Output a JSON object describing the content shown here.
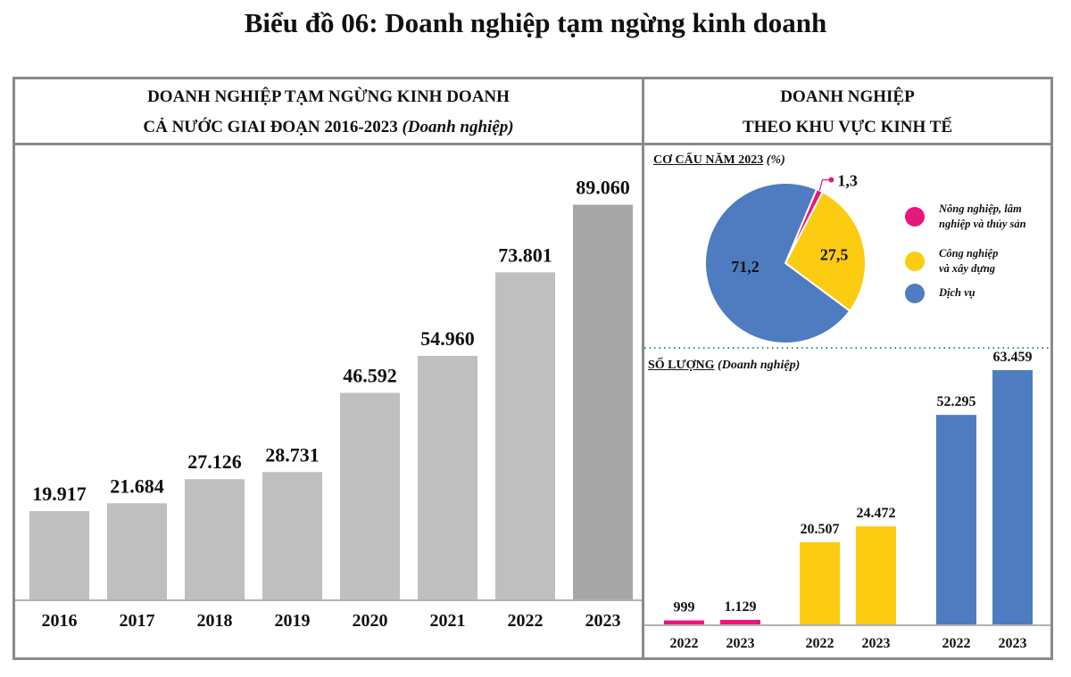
{
  "title": "Biểu đồ 06: Doanh nghiệp tạm ngừng kinh doanh",
  "left_header": {
    "line1": "DOANH NGHIỆP TẠM NGỪNG KINH DOANH",
    "line2": "CẢ NƯỚC GIAI ĐOẠN 2016-2023",
    "unit": "(Doanh nghiệp)"
  },
  "right_header": {
    "line1": "DOANH NGHIỆP",
    "line2": "THEO KHU VỰC KINH TẾ"
  },
  "pie_subtitle": {
    "label": "CƠ CẤU NĂM 2023",
    "unit": "(%)"
  },
  "bar_subtitle": {
    "label": "SỐ LƯỢNG",
    "unit": "(Doanh nghiệp)"
  },
  "legend": [
    {
      "line1": "Nông nghiệp, lâm",
      "line2": "nghiệp và thủy sản",
      "color": "#e8177a"
    },
    {
      "line1": "Công nghiệp",
      "line2": "và xây dựng",
      "color": "#fccc12"
    },
    {
      "line1": "Dịch vụ",
      "line2": "",
      "color": "#4f7bc0"
    }
  ],
  "chart_data": [
    {
      "type": "bar",
      "title": "DOANH NGHIỆP TẠM NGỪNG KINH DOANH CẢ NƯỚC GIAI ĐOẠN 2016-2023 (Doanh nghiệp)",
      "categories": [
        "2016",
        "2017",
        "2018",
        "2019",
        "2020",
        "2021",
        "2022",
        "2023"
      ],
      "values": [
        19917,
        21684,
        27126,
        28731,
        46592,
        54960,
        73801,
        89060
      ],
      "labels": [
        "19.917",
        "21.684",
        "27.126",
        "28.731",
        "46.592",
        "54.960",
        "73.801",
        "89.060"
      ],
      "colors": [
        "#bfbfbf",
        "#bfbfbf",
        "#bfbfbf",
        "#bfbfbf",
        "#bfbfbf",
        "#bfbfbf",
        "#bfbfbf",
        "#a6a6a6"
      ],
      "ylim": [
        0,
        95000
      ],
      "grid": false
    },
    {
      "type": "pie",
      "title": "CƠ CẤU NĂM 2023 (%)",
      "categories": [
        "Nông nghiệp, lâm nghiệp và thủy sản",
        "Công nghiệp và xây dựng",
        "Dịch vụ"
      ],
      "values": [
        1.3,
        27.5,
        71.2
      ],
      "labels": [
        "1,3",
        "27,5",
        "71,2"
      ],
      "colors": [
        "#e8177a",
        "#fccc12",
        "#4f7bc0"
      ],
      "legend": "right"
    },
    {
      "type": "bar",
      "title": "SỐ LƯỢNG (Doanh nghiệp)",
      "categories": [
        "2022",
        "2023",
        "2022",
        "2023",
        "2022",
        "2023"
      ],
      "groups": [
        "Nông nghiệp, lâm nghiệp và thủy sản",
        "Công nghiệp và xây dựng",
        "Dịch vụ"
      ],
      "series": [
        {
          "name": "Nông nghiệp, lâm nghiệp và thủy sản",
          "values": [
            999,
            1129
          ],
          "labels": [
            "999",
            "1.129"
          ],
          "color": "#e8177a"
        },
        {
          "name": "Công nghiệp và xây dựng",
          "values": [
            20507,
            24472
          ],
          "labels": [
            "20.507",
            "24.472"
          ],
          "color": "#fccc12"
        },
        {
          "name": "Dịch vụ",
          "values": [
            52295,
            63459
          ],
          "labels": [
            "52.295",
            "63.459"
          ],
          "color": "#4f7bc0"
        }
      ],
      "ylim": [
        0,
        66000
      ],
      "grid": false
    }
  ]
}
